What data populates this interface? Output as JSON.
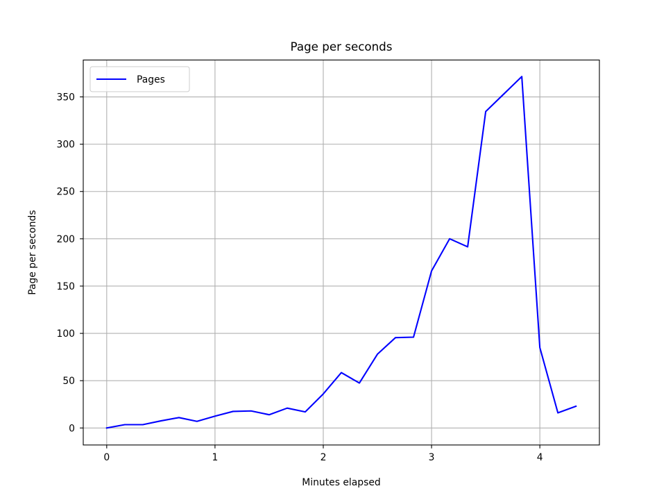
{
  "chart_data": {
    "type": "line",
    "title": "Page per seconds",
    "xlabel": "Minutes elapsed",
    "ylabel": "Page per seconds",
    "xlim": [
      -0.2167,
      4.55
    ],
    "ylim": [
      -18,
      389
    ],
    "xticks": [
      0,
      1,
      2,
      3,
      4
    ],
    "xtick_labels": [
      "0",
      "1",
      "2",
      "3",
      "4"
    ],
    "yticks": [
      0,
      50,
      100,
      150,
      200,
      250,
      300,
      350
    ],
    "ytick_labels": [
      "0",
      "50",
      "100",
      "150",
      "200",
      "250",
      "300",
      "350"
    ],
    "grid": true,
    "legend": {
      "position": "upper-left",
      "entries": [
        "Pages"
      ]
    },
    "series": [
      {
        "name": "Pages",
        "color": "#0000ff",
        "x": [
          0,
          0.1667,
          0.3333,
          0.5,
          0.6667,
          0.8333,
          1.0,
          1.1667,
          1.3333,
          1.5,
          1.6667,
          1.8333,
          2.0,
          2.1667,
          2.3333,
          2.5,
          2.6667,
          2.8333,
          3.0,
          3.1667,
          3.3333,
          3.5,
          3.6667,
          3.8333,
          4.0,
          4.1667,
          4.3333
        ],
        "y": [
          0,
          3.5,
          3.5,
          7.5,
          11,
          7,
          12.5,
          17.5,
          18,
          14,
          21,
          17,
          36,
          58.5,
          47.5,
          78,
          95.5,
          96,
          166,
          200,
          191.5,
          334.5,
          353,
          371.5,
          85,
          16,
          23
        ]
      }
    ]
  }
}
